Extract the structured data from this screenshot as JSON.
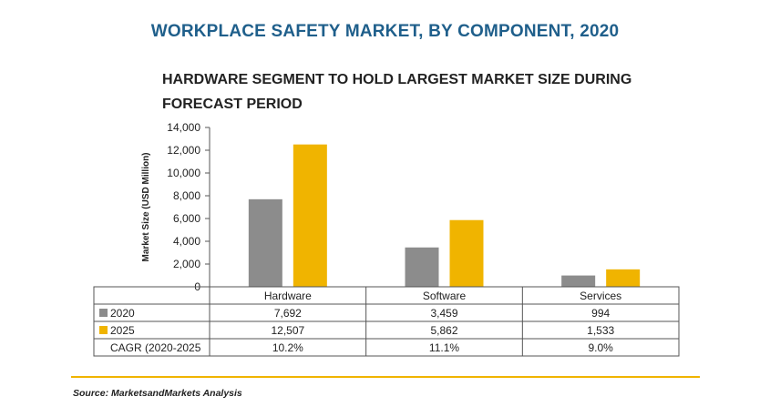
{
  "title": "WORKPLACE SAFETY MARKET, BY COMPONENT, 2020",
  "subtitle": "HARDWARE SEGMENT TO HOLD LARGEST MARKET SIZE DURING FORECAST PERIOD",
  "source": "Source: MarketsandMarkets Analysis",
  "colors": {
    "s2020": "#8c8c8c",
    "s2025": "#f0b400",
    "title": "#1f5f8b",
    "rule": "#f0b400"
  },
  "chart_data": {
    "type": "bar",
    "title": "HARDWARE SEGMENT TO HOLD LARGEST MARKET SIZE DURING FORECAST PERIOD",
    "ylabel": "Market Size (USD Million)",
    "xlabel": "",
    "ylim": [
      0,
      14000
    ],
    "yticks": [
      0,
      2000,
      4000,
      6000,
      8000,
      10000,
      12000,
      14000
    ],
    "ytick_labels": [
      "0",
      "2,000",
      "4,000",
      "6,000",
      "8,000",
      "10,000",
      "12,000",
      "14,000"
    ],
    "categories": [
      "Hardware",
      "Software",
      "Services"
    ],
    "series": [
      {
        "name": "2020",
        "values": [
          7692,
          3459,
          994
        ],
        "labels": [
          "7,692",
          "3,459",
          "994"
        ]
      },
      {
        "name": "2025",
        "values": [
          12507,
          5862,
          1533
        ],
        "labels": [
          "12,507",
          "5,862",
          "1,533"
        ]
      }
    ],
    "extra_row": {
      "name": "CAGR (2020-2025",
      "values": [
        "10.2%",
        "11.1%",
        "9.0%"
      ]
    }
  }
}
